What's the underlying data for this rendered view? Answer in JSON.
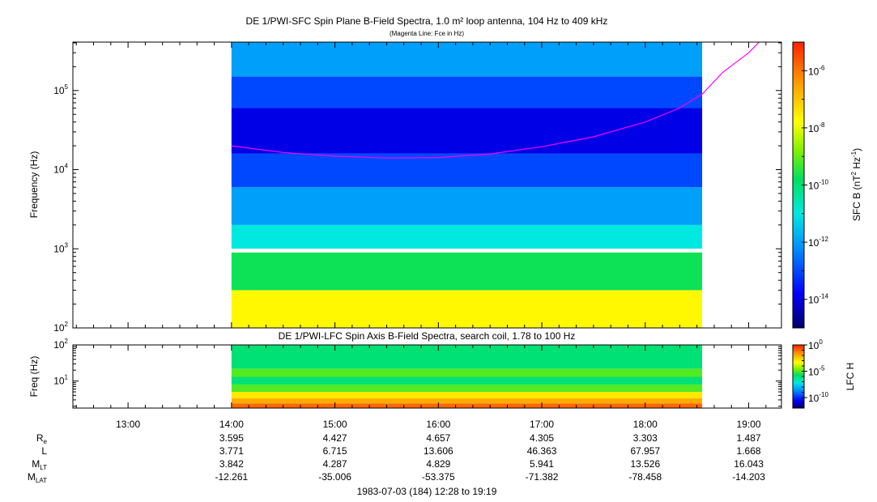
{
  "header": {
    "title": "DE 1/PWI-SFC  Spin Plane B-Field Spectra, 1.0 m² loop antenna, 104 Hz to 409 kHz",
    "subtitle": "(Magenta Line: Fce in Hz)"
  },
  "chart_data": [
    {
      "type": "heatmap",
      "title": "DE 1/PWI-SFC  Spin Plane B-Field Spectra, 1.0 m² loop antenna, 104 Hz to 409 kHz",
      "subtitle": "(Magenta Line: Fce in Hz)",
      "ylabel": "Frequency (Hz)",
      "y_scale": "log",
      "ylim": [
        100,
        409000
      ],
      "y_tick_labels": [
        "10^2",
        "10^3",
        "10^4",
        "10^5"
      ],
      "colorbar_label": "SFC B (nT^2 Hz^-1)",
      "colorbar_scale": "log",
      "colorbar_range": [
        1e-15,
        1e-05
      ],
      "colorbar_tick_labels": [
        "10^-14",
        "10^-12",
        "10^-10",
        "10^-8",
        "10^-6"
      ],
      "colorscale": [
        "#00006a",
        "#0000ff",
        "#0090ff",
        "#00e8e0",
        "#00e060",
        "#80f000",
        "#ffff00",
        "#ffa000",
        "#ff2000"
      ],
      "data_time_range": [
        "14:00",
        "18:33"
      ],
      "data_gap_hz": [
        900,
        1000
      ],
      "fce_line": {
        "color": "#ff00ff",
        "time_hours": [
          14.0,
          14.5,
          15.0,
          15.5,
          16.0,
          16.5,
          17.0,
          17.5,
          18.0,
          18.33,
          18.55,
          18.75,
          19.0,
          19.1
        ],
        "fce_hz": [
          20000,
          16500,
          14800,
          14000,
          14200,
          15800,
          19500,
          26000,
          40000,
          60000,
          90000,
          170000,
          300000,
          409000
        ]
      },
      "band_levels": [
        {
          "f_min": 100,
          "f_max": 300,
          "level": 2e-08
        },
        {
          "f_min": 300,
          "f_max": 900,
          "level": 2e-10
        },
        {
          "f_min": 1000,
          "f_max": 2000,
          "level": 1e-11
        },
        {
          "f_min": 2000,
          "f_max": 6000,
          "level": 1e-12
        },
        {
          "f_min": 6000,
          "f_max": 16000,
          "level": 1e-13
        },
        {
          "f_min": 16000,
          "f_max": 60000,
          "level": 1e-14
        },
        {
          "f_min": 60000,
          "f_max": 150000,
          "level": 1e-13
        },
        {
          "f_min": 150000,
          "f_max": 409000,
          "level": 1e-12
        }
      ]
    },
    {
      "type": "heatmap",
      "title": "DE 1/PWI-LFC  Spin Axis B-Field Spectra, search coil, 1.78 to 100 Hz",
      "ylabel": "Freq (Hz)",
      "y_scale": "log",
      "ylim": [
        1.78,
        100
      ],
      "y_tick_labels": [
        "10^1",
        "10^2"
      ],
      "colorbar_label": "LFC H",
      "colorbar_scale": "log",
      "colorbar_range": [
        1e-12,
        1
      ],
      "colorbar_tick_labels": [
        "10^-10",
        "10^-5",
        "10^0"
      ],
      "data_time_range": [
        "14:00",
        "18:33"
      ],
      "band_levels": [
        {
          "f_min": 1.78,
          "f_max": 2.4,
          "level": 0.1
        },
        {
          "f_min": 2.4,
          "f_max": 3.3,
          "level": 0.01
        },
        {
          "f_min": 3.3,
          "f_max": 5,
          "level": 0.001
        },
        {
          "f_min": 5,
          "f_max": 8,
          "level": 1e-05
        },
        {
          "f_min": 8,
          "f_max": 13,
          "level": 1e-06
        },
        {
          "f_min": 13,
          "f_max": 22,
          "level": 1e-05
        },
        {
          "f_min": 22,
          "f_max": 100,
          "level": 1e-06
        }
      ]
    }
  ],
  "x_axis": {
    "hour_start": 12.4667,
    "hour_end": 19.3167,
    "ticks": [
      "13:00",
      "14:00",
      "15:00",
      "16:00",
      "17:00",
      "18:00",
      "19:00"
    ],
    "tick_hours": [
      13,
      14,
      15,
      16,
      17,
      18,
      19
    ]
  },
  "ephemeris": {
    "rows": [
      {
        "label": "R",
        "sub": "e",
        "values": [
          "3.595",
          "4.427",
          "4.657",
          "4.305",
          "3.303",
          "1.487"
        ]
      },
      {
        "label": "L",
        "sub": "",
        "values": [
          "3.771",
          "6.715",
          "13.606",
          "46.363",
          "67.957",
          "1.668"
        ]
      },
      {
        "label": "M",
        "sub": "LT",
        "values": [
          "3.842",
          "4.287",
          "4.829",
          "5.941",
          "13.526",
          "16.043"
        ]
      },
      {
        "label": "M",
        "sub": "LAT",
        "values": [
          "-12.261",
          "-35.006",
          "-53.375",
          "-71.382",
          "-78.458",
          "-14.203"
        ]
      }
    ],
    "value_hours": [
      14,
      15,
      16,
      17,
      18,
      19
    ]
  },
  "footer": {
    "date_range": "1983-07-03 (184) 12:28 to 19:19"
  }
}
